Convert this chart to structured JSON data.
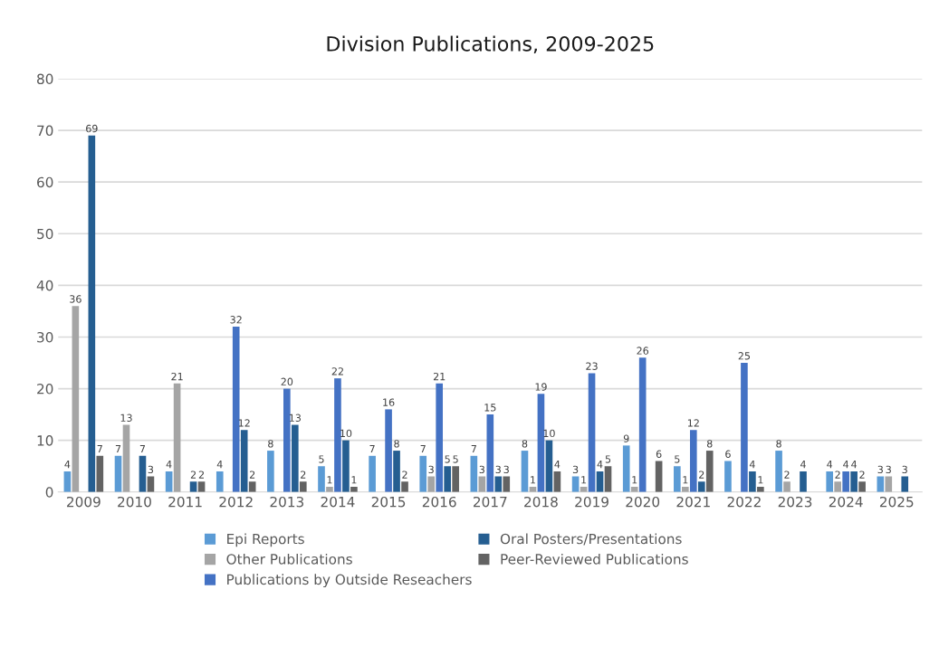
{
  "chart_data": {
    "type": "bar",
    "title": "Division Publications, 2009-2025",
    "categories": [
      "2009",
      "2010",
      "2011",
      "2012",
      "2013",
      "2014",
      "2015",
      "2016",
      "2017",
      "2018",
      "2019",
      "2020",
      "2021",
      "2022",
      "2023",
      "2024",
      "2025"
    ],
    "series": [
      {
        "name": "Epi Reports",
        "color": "#5b9bd5",
        "values": [
          4,
          7,
          4,
          4,
          8,
          5,
          7,
          7,
          7,
          8,
          3,
          9,
          5,
          6,
          8,
          4,
          3
        ]
      },
      {
        "name": "Other Publications",
        "color": "#a5a5a5",
        "values": [
          36,
          13,
          21,
          null,
          null,
          1,
          null,
          3,
          3,
          1,
          1,
          1,
          1,
          null,
          2,
          2,
          3
        ]
      },
      {
        "name": "Publications by Outside Reseachers",
        "color": "#4472c4",
        "values": [
          null,
          null,
          null,
          32,
          20,
          22,
          16,
          21,
          15,
          19,
          23,
          26,
          12,
          25,
          null,
          4,
          null
        ]
      },
      {
        "name": "Oral Posters/Presentations",
        "color": "#255e91",
        "values": [
          69,
          7,
          2,
          12,
          13,
          10,
          8,
          5,
          3,
          10,
          4,
          null,
          2,
          4,
          4,
          4,
          3
        ]
      },
      {
        "name": "Peer-Reviewed Publications",
        "color": "#636363",
        "values": [
          7,
          3,
          2,
          2,
          2,
          1,
          2,
          5,
          3,
          4,
          5,
          6,
          8,
          1,
          null,
          2,
          null
        ]
      }
    ],
    "ylim": [
      0,
      80
    ],
    "yticks": [
      0,
      10,
      20,
      30,
      40,
      50,
      60,
      70,
      80
    ],
    "grid": "y",
    "legend": "bottom",
    "data_labels": true
  }
}
